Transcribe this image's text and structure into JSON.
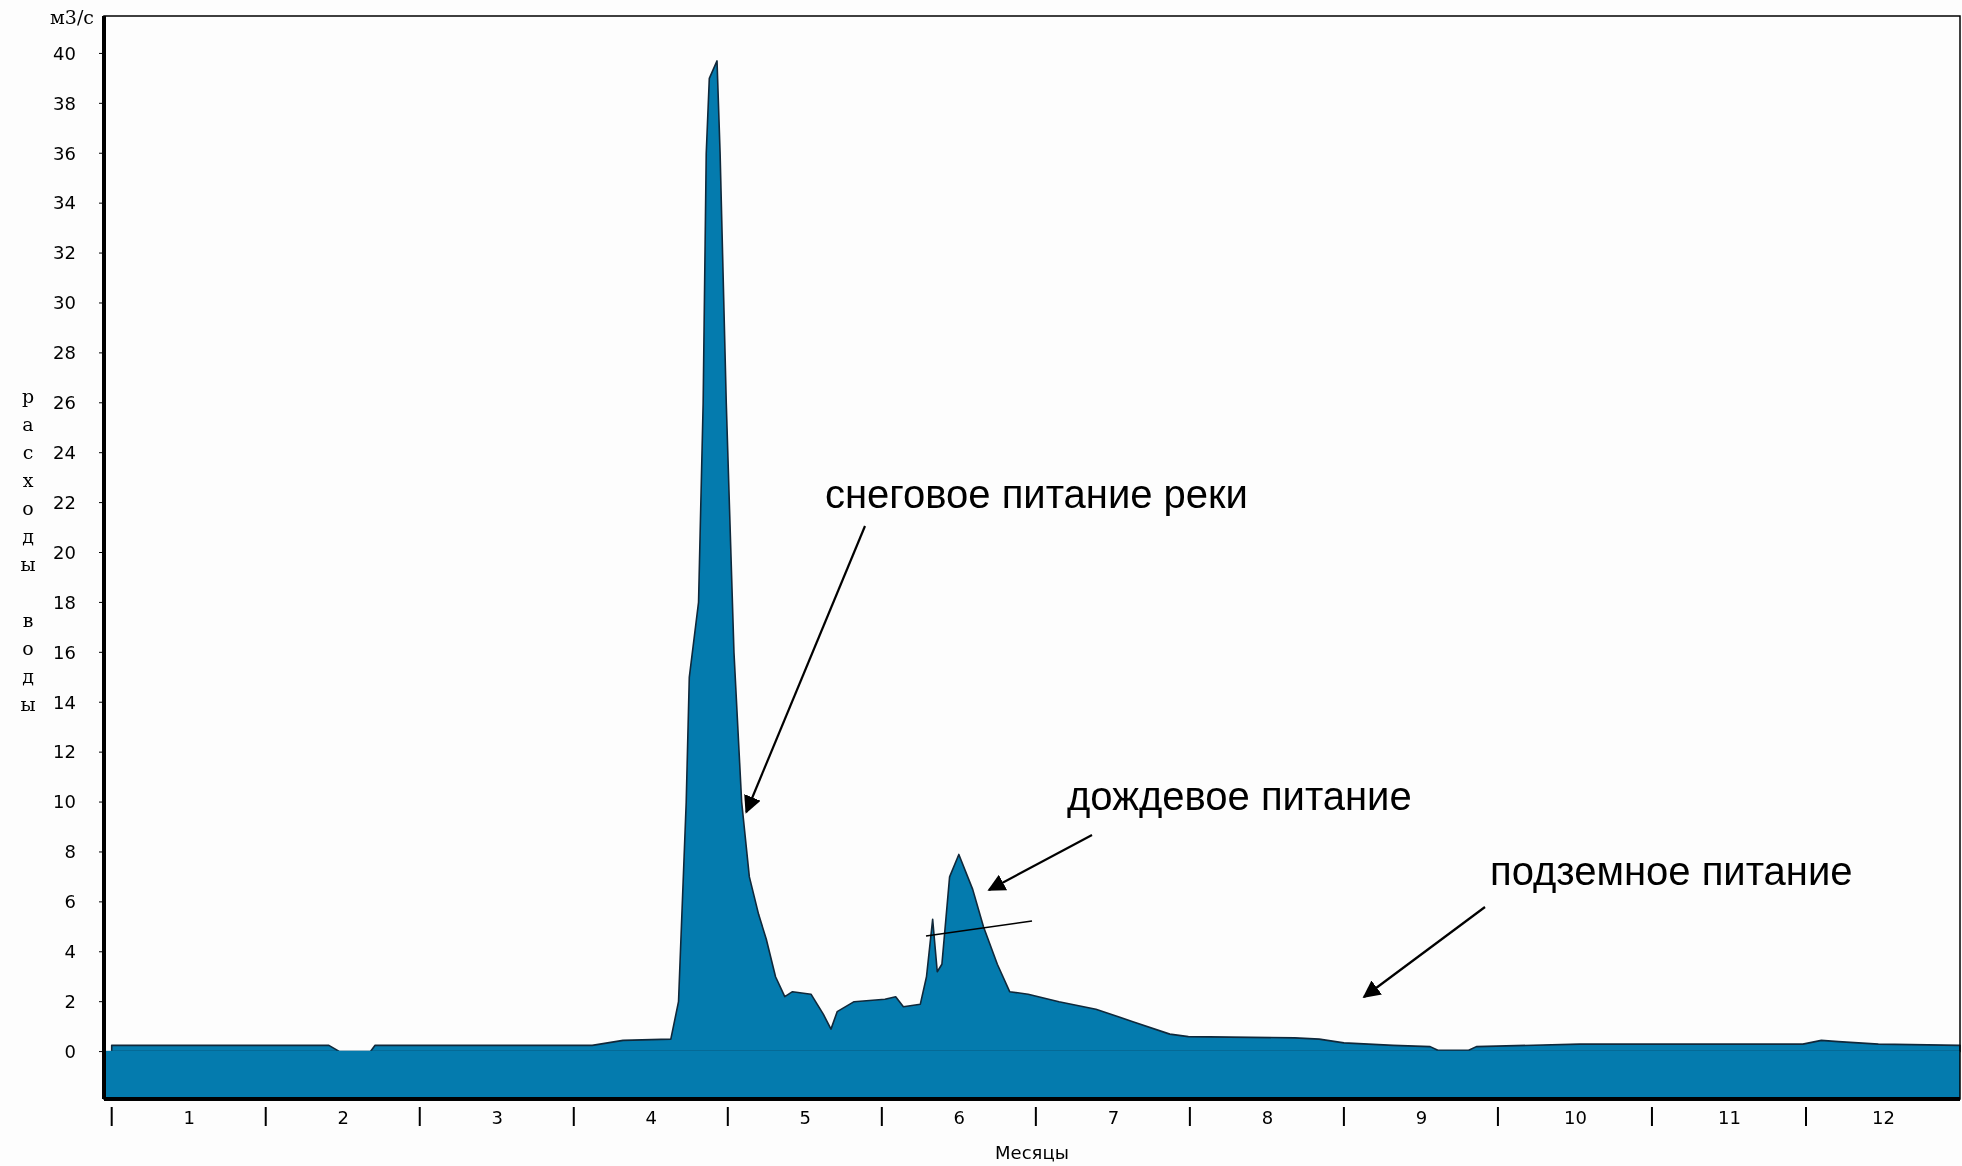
{
  "chart_data": {
    "type": "area",
    "xlabel": "Месяцы",
    "ylabel": "расходы воды",
    "x": [
      0.5,
      1.91,
      1.98,
      2.18,
      2.21,
      3.62,
      3.82,
      4.13,
      4.18,
      4.23,
      4.25,
      4.29,
      4.31,
      4.34,
      4.36,
      4.38,
      4.43,
      4.45,
      4.49,
      4.54,
      4.59,
      4.64,
      4.7,
      4.75,
      4.81,
      4.87,
      4.92,
      5.04,
      5.12,
      5.17,
      5.21,
      5.32,
      5.52,
      5.59,
      5.64,
      5.75,
      5.79,
      5.83,
      5.86,
      5.89,
      5.94,
      6,
      6.09,
      6.16,
      6.25,
      6.33,
      6.45,
      6.65,
      6.89,
      7.13,
      7.37,
      7.49,
      8.18,
      8.34,
      8.5,
      8.82,
      9.06,
      9.11,
      9.31,
      9.36,
      10.03,
      11.48,
      11.6,
      11.71,
      11.97,
      12.5
    ],
    "series": [
      {
        "color": "#047bae",
        "values": [
          0.25,
          0.25,
          0,
          0,
          0.25,
          0.25,
          0.45,
          0.5,
          2,
          10,
          15,
          17,
          18,
          26,
          36,
          39,
          39.7,
          36,
          26,
          16,
          10,
          7,
          5.5,
          4.5,
          3,
          2.2,
          2.4,
          2.3,
          1.5,
          0.9,
          1.6,
          2,
          2.1,
          2.2,
          1.8,
          1.9,
          3,
          5.3,
          3.2,
          3.5,
          7,
          7.9,
          6.5,
          5,
          3.5,
          2.4,
          2.3,
          2,
          1.7,
          1.2,
          0.7,
          0.6,
          0.55,
          0.5,
          0.35,
          0.25,
          0.2,
          0.05,
          0.05,
          0.2,
          0.3,
          0.3,
          0.45,
          0.4,
          0.3,
          0.25
        ]
      }
    ],
    "xlim": [
      0.45,
      12.5
    ],
    "xticks": [
      1,
      2,
      3,
      4,
      5,
      6,
      7,
      8,
      9,
      10,
      11,
      12
    ],
    "ylim": [
      -1.9,
      41.5
    ],
    "yticks": [
      0,
      2,
      4,
      6,
      8,
      10,
      12,
      14,
      16,
      18,
      20,
      22,
      24,
      26,
      28,
      30,
      32,
      34,
      36,
      38,
      40
    ],
    "grid": false,
    "annotations": [
      "м3/с",
      {
        "text": "снеговое питание реки",
        "x": 4.62,
        "y": 9.6
      },
      "дождевое питание",
      "подземное питание"
    ]
  }
}
